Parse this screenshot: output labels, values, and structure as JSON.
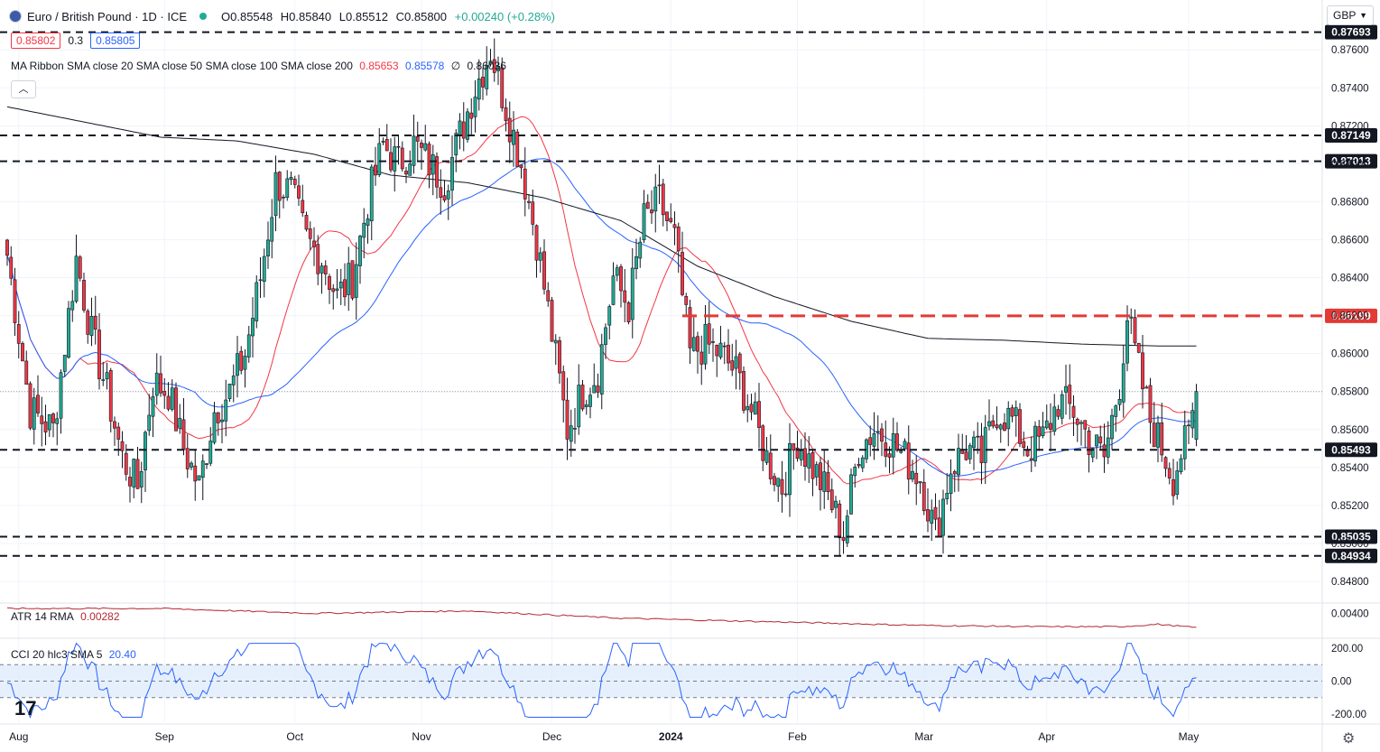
{
  "header": {
    "title": "Euro / British Pound · 1D · ICE",
    "open": "O0.85548",
    "high": "H0.85840",
    "low": "L0.85512",
    "close": "C0.85800",
    "change": "+0.00240 (+0.28%)",
    "bid": "0.85802",
    "spread": "0.3",
    "ask": "0.85805"
  },
  "ma_legend": {
    "label": "MA Ribbon SMA close 20 SMA close 50 SMA close 100 SMA close 200",
    "v20": "0.85653",
    "v50": "0.85578",
    "v100": "∅",
    "v200": "0.86036"
  },
  "atr_legend": {
    "label": "ATR 14 RMA",
    "value": "0.00282"
  },
  "cci_legend": {
    "label": "CCI 20 hlc3 SMA 5",
    "value": "20.40"
  },
  "currency": "GBP",
  "colors": {
    "up": "#22ab94",
    "down": "#f23645",
    "sma20": "#f23645",
    "sma50": "#2962ff",
    "sma200": "#131722",
    "atr": "#b22833",
    "cci": "#2962ff",
    "cci_band": "#d6e6fb",
    "resistance": "#e53935"
  },
  "chart_data": {
    "type": "candlestick",
    "price_axis": {
      "min": 0.847,
      "max": 0.8772,
      "ticks": [
        0.848,
        0.85,
        0.852,
        0.854,
        0.856,
        0.858,
        0.86,
        0.862,
        0.864,
        0.866,
        0.868,
        0.87,
        0.872,
        0.874,
        0.876
      ],
      "tick_labels": [
        "0.84800",
        "0.85000",
        "0.85200",
        "0.85400",
        "0.85600",
        "0.85800",
        "0.86000",
        "0.86200",
        "0.86400",
        "0.86600",
        "0.86800",
        "0.87000",
        "0.87200",
        "0.87400",
        "0.87600"
      ]
    },
    "x_labels": [
      "Aug",
      "Sep",
      "Oct",
      "Nov",
      "Dec",
      "2024",
      "Feb",
      "Mar",
      "Apr",
      "May"
    ],
    "x_label_index": [
      3,
      41,
      75,
      108,
      142,
      173,
      206,
      239,
      271,
      308
    ],
    "horizontal_levels": [
      {
        "value": 0.87693,
        "label": "0.87693",
        "style": "dashed-black"
      },
      {
        "value": 0.87149,
        "label": "0.87149",
        "style": "dashed-black"
      },
      {
        "value": 0.87013,
        "label": "0.87013",
        "style": "dashed-black"
      },
      {
        "value": 0.86199,
        "label": "0.86199",
        "style": "dashed-red",
        "start_index": 176
      },
      {
        "value": 0.85493,
        "label": "0.85493",
        "style": "dashed-black"
      },
      {
        "value": 0.85035,
        "label": "0.85035",
        "style": "dashed-black"
      },
      {
        "value": 0.84934,
        "label": "0.84934",
        "style": "dashed-black"
      }
    ],
    "close_anchors": [
      [
        0,
        0.8652
      ],
      [
        6,
        0.857
      ],
      [
        12,
        0.856
      ],
      [
        18,
        0.865
      ],
      [
        22,
        0.861
      ],
      [
        26,
        0.858
      ],
      [
        30,
        0.8545
      ],
      [
        34,
        0.853
      ],
      [
        38,
        0.8585
      ],
      [
        42,
        0.858
      ],
      [
        46,
        0.855
      ],
      [
        50,
        0.853
      ],
      [
        54,
        0.857
      ],
      [
        58,
        0.858
      ],
      [
        62,
        0.86
      ],
      [
        66,
        0.864
      ],
      [
        70,
        0.869
      ],
      [
        74,
        0.8685
      ],
      [
        78,
        0.866
      ],
      [
        82,
        0.865
      ],
      [
        86,
        0.863
      ],
      [
        90,
        0.864
      ],
      [
        94,
        0.868
      ],
      [
        98,
        0.871
      ],
      [
        102,
        0.87
      ],
      [
        106,
        0.871
      ],
      [
        110,
        0.87
      ],
      [
        114,
        0.869
      ],
      [
        118,
        0.8715
      ],
      [
        122,
        0.874
      ],
      [
        126,
        0.876
      ],
      [
        130,
        0.873
      ],
      [
        134,
        0.87
      ],
      [
        138,
        0.866
      ],
      [
        142,
        0.861
      ],
      [
        146,
        0.856
      ],
      [
        150,
        0.858
      ],
      [
        154,
        0.859
      ],
      [
        158,
        0.864
      ],
      [
        162,
        0.8625
      ],
      [
        166,
        0.867
      ],
      [
        170,
        0.868
      ],
      [
        174,
        0.866
      ],
      [
        178,
        0.86
      ],
      [
        182,
        0.8605
      ],
      [
        186,
        0.86
      ],
      [
        190,
        0.859
      ],
      [
        194,
        0.857
      ],
      [
        198,
        0.8545
      ],
      [
        202,
        0.853
      ],
      [
        206,
        0.8555
      ],
      [
        210,
        0.854
      ],
      [
        214,
        0.8525
      ],
      [
        218,
        0.8505
      ],
      [
        222,
        0.855
      ],
      [
        226,
        0.856
      ],
      [
        230,
        0.8555
      ],
      [
        234,
        0.8545
      ],
      [
        238,
        0.8535
      ],
      [
        242,
        0.8505
      ],
      [
        246,
        0.854
      ],
      [
        250,
        0.855
      ],
      [
        254,
        0.8545
      ],
      [
        258,
        0.857
      ],
      [
        262,
        0.8565
      ],
      [
        266,
        0.855
      ],
      [
        270,
        0.8555
      ],
      [
        274,
        0.8575
      ],
      [
        278,
        0.857
      ],
      [
        282,
        0.8555
      ],
      [
        286,
        0.8545
      ],
      [
        290,
        0.8585
      ],
      [
        292,
        0.862
      ],
      [
        294,
        0.86
      ],
      [
        298,
        0.8565
      ],
      [
        302,
        0.8545
      ],
      [
        304,
        0.8535
      ],
      [
        306,
        0.8548
      ],
      [
        308,
        0.8555
      ],
      [
        310,
        0.858
      ]
    ],
    "sma200_anchors": [
      [
        0,
        0.873
      ],
      [
        40,
        0.8714
      ],
      [
        60,
        0.8712
      ],
      [
        80,
        0.8705
      ],
      [
        100,
        0.8694
      ],
      [
        120,
        0.869
      ],
      [
        140,
        0.8682
      ],
      [
        160,
        0.867
      ],
      [
        180,
        0.8646
      ],
      [
        200,
        0.863
      ],
      [
        220,
        0.8617
      ],
      [
        240,
        0.8608
      ],
      [
        260,
        0.8607
      ],
      [
        280,
        0.8605
      ],
      [
        300,
        0.8604
      ],
      [
        310,
        0.8604
      ]
    ],
    "atr_axis": {
      "min": 0.0021,
      "max": 0.0047,
      "tick_labels": [
        "0.00400"
      ],
      "ticks": [
        0.004
      ]
    },
    "atr_anchors": [
      [
        0,
        0.0044
      ],
      [
        40,
        0.0044
      ],
      [
        80,
        0.004
      ],
      [
        120,
        0.0042
      ],
      [
        160,
        0.0036
      ],
      [
        200,
        0.0033
      ],
      [
        240,
        0.003
      ],
      [
        270,
        0.0029
      ],
      [
        290,
        0.0029
      ],
      [
        300,
        0.0031
      ],
      [
        310,
        0.00282
      ]
    ],
    "cci_axis": {
      "min": -250,
      "max": 250,
      "ticks": [
        200,
        0,
        -200
      ],
      "tick_labels": [
        "200.00",
        "0.00",
        "-200.00"
      ],
      "band": [
        -100,
        100
      ]
    },
    "cci_last": 20.4
  }
}
